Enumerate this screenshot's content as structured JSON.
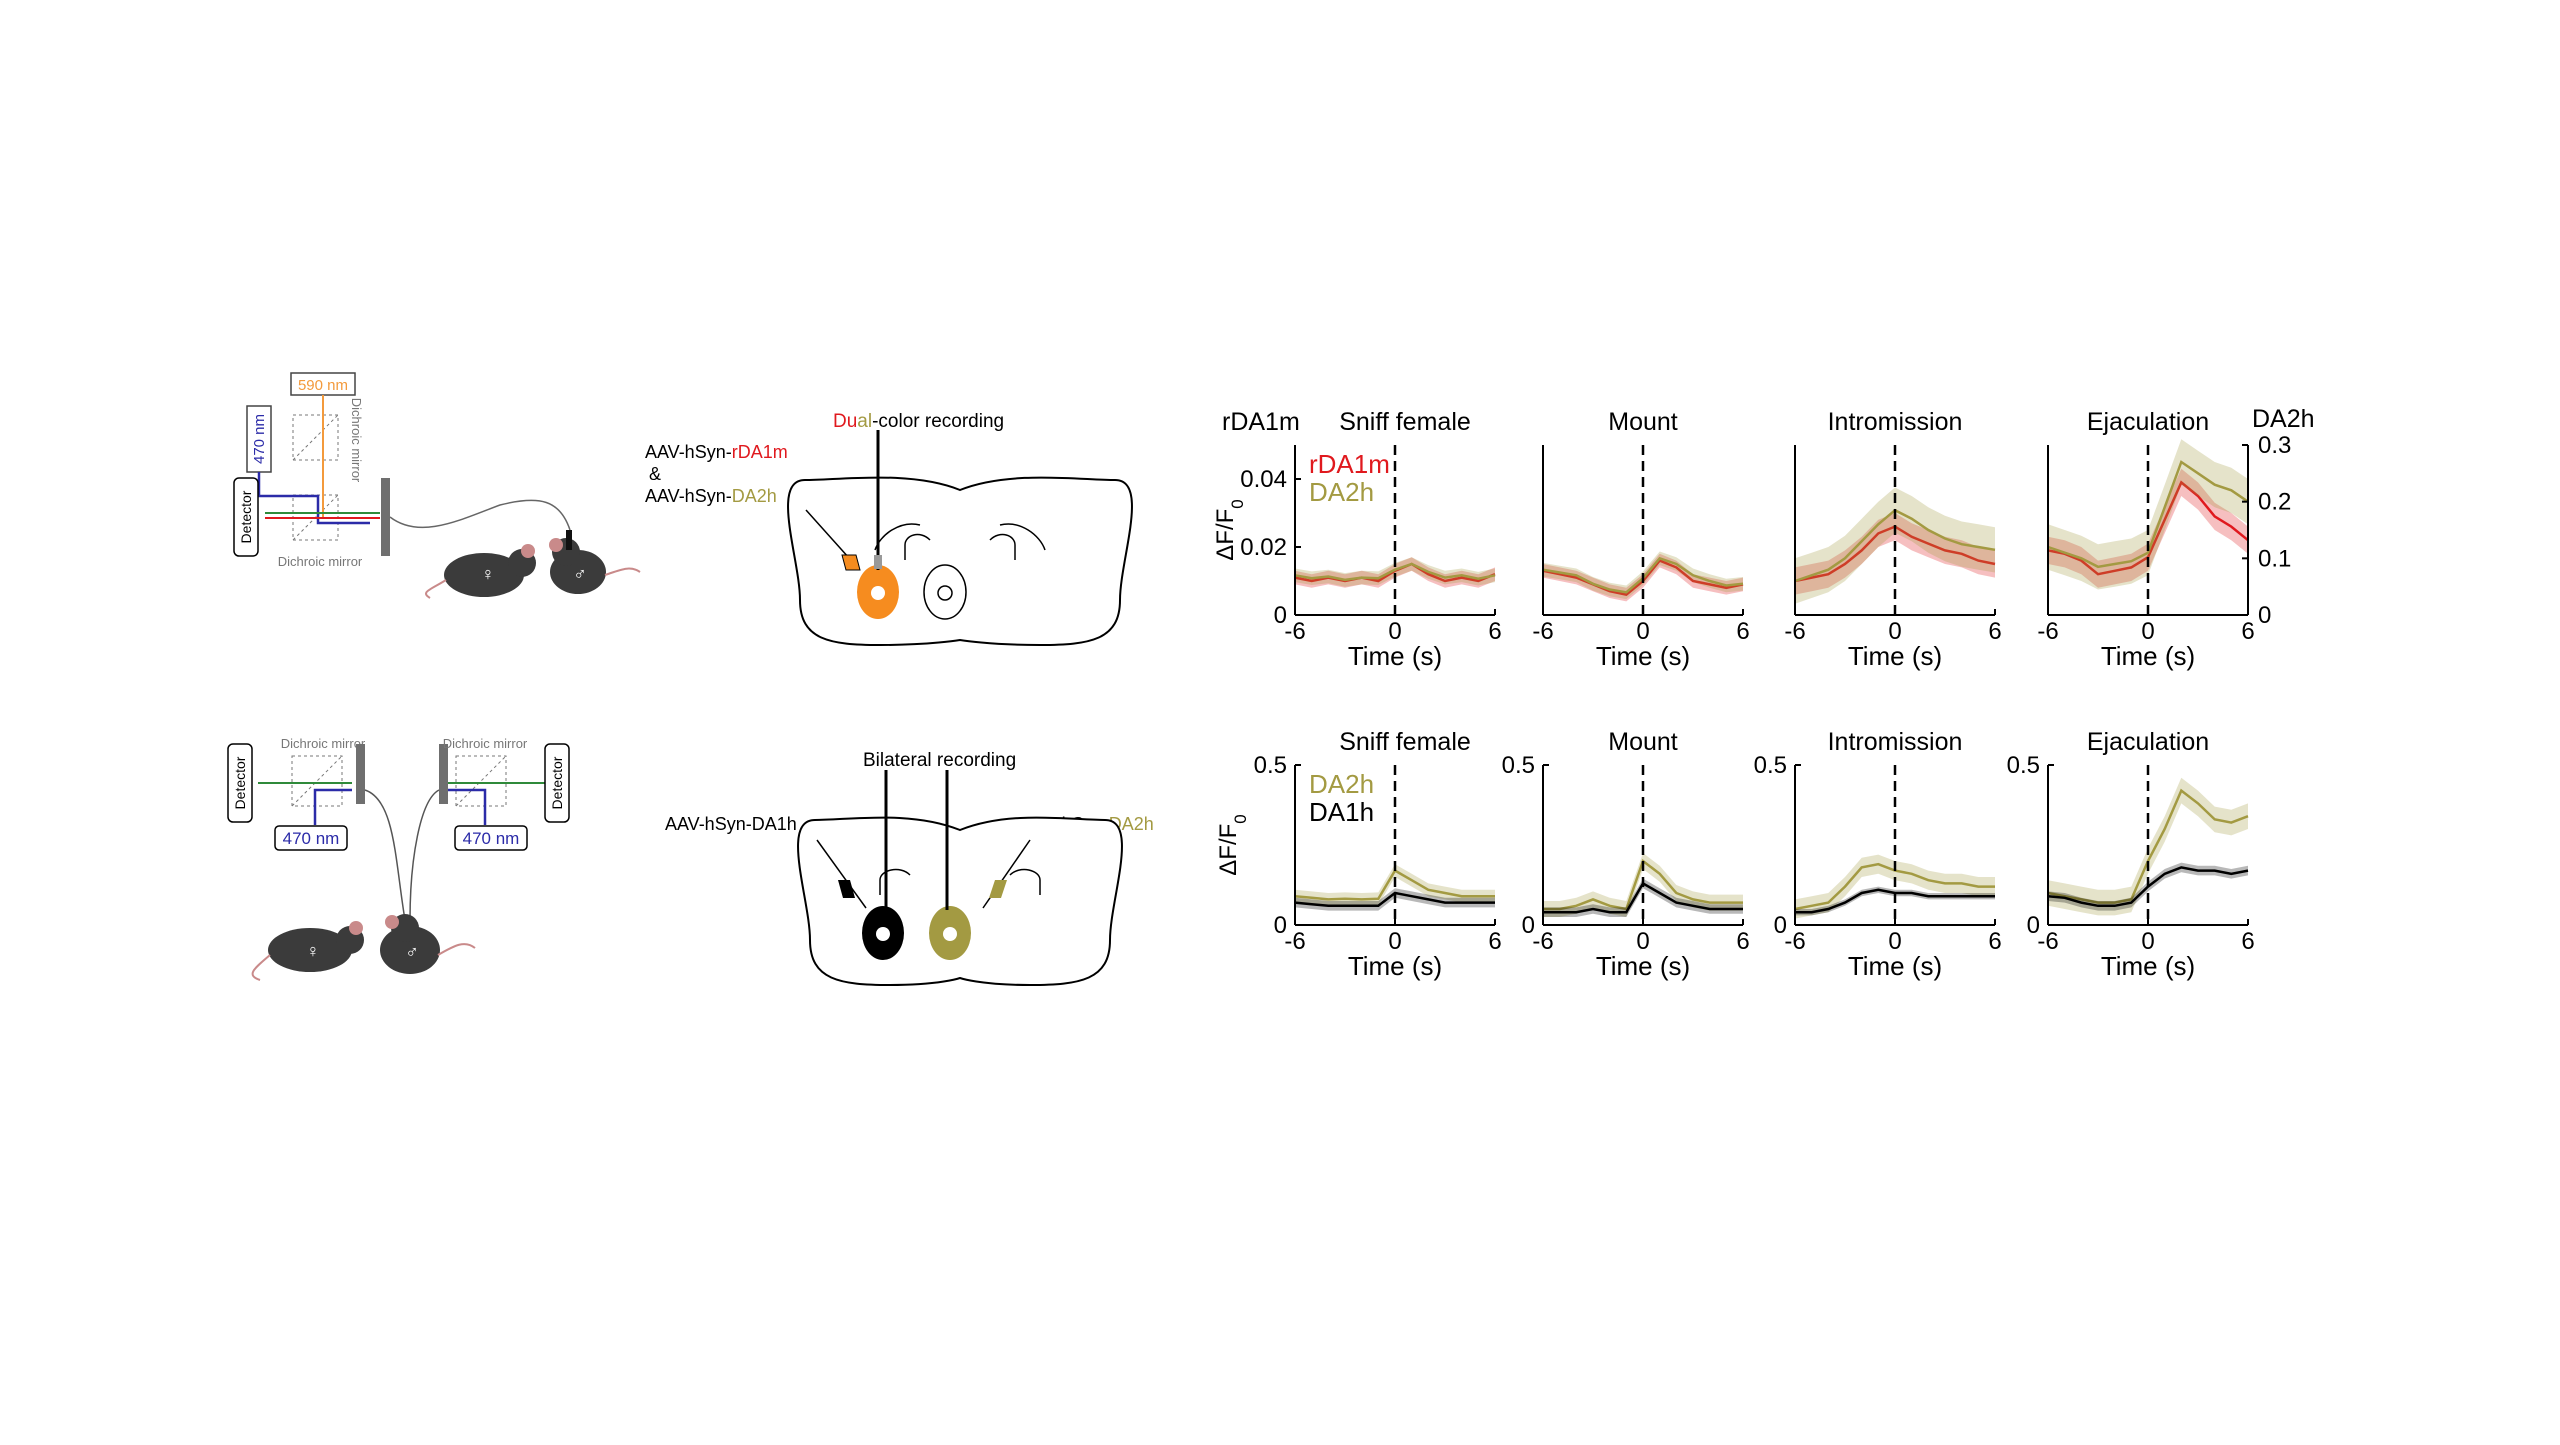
{
  "setup_top": {
    "laser_590": "590 nm",
    "laser_470": "470 nm",
    "dichroic_mirror_vertical": "Dichroic mirror",
    "dichroic_mirror_bottom": "Dichroic mirror",
    "detector": "Detector",
    "female_symbol": "♀",
    "male_symbol": "♂"
  },
  "setup_bottom": {
    "dichroic_left": "Dichroic mirror",
    "dichroic_right": "Dichroic mirror",
    "detector_left": "Detector",
    "detector_right": "Detector",
    "laser_left": "470 nm",
    "laser_right": "470 nm",
    "female_symbol": "♀",
    "male_symbol": "♂"
  },
  "brain_top": {
    "title_part1": "Du",
    "title_part2": "al",
    "title_part3": "-color recording",
    "virus1_prefix": "AAV-hSyn-",
    "virus1_name": "rDA1m",
    "ampersand": "&",
    "virus2_prefix": "AAV-hSyn-",
    "virus2_name": "DA2h"
  },
  "brain_bottom": {
    "title": "Bilateral recording",
    "virus_left": "AAV-hSyn-DA1h",
    "virus_right_prefix": "AAV-hSyn-",
    "virus_right_name": "DA2h"
  },
  "colors": {
    "rDA1m": "#e0191e",
    "DA2h": "#a39a42",
    "DA1h": "#000000",
    "laser_orange": "#f39a3c",
    "laser_blue": "#2b2ba8",
    "laser_green": "#2f8a3a",
    "fiber_orange": "#f68c1f"
  },
  "chart_data": [
    {
      "type": "line",
      "row": "top",
      "title": "Sniff female",
      "ylabel": "ΔF/F0",
      "left_axis_title": "rDA1m",
      "xlabel": "Time (s)",
      "xlim": [
        -6,
        6
      ],
      "xticks": [
        "-6",
        "0",
        "6"
      ],
      "ylim": [
        0,
        0.05
      ],
      "yticks": [
        "0",
        "0.02",
        "0.04"
      ],
      "legend": [
        "rDA1m",
        "DA2h"
      ],
      "x": [
        -6,
        -5,
        -4,
        -3,
        -2,
        -1,
        0,
        1,
        2,
        3,
        4,
        5,
        6
      ],
      "series": [
        {
          "name": "rDA1m",
          "axis": "left",
          "values": [
            0.011,
            0.01,
            0.011,
            0.01,
            0.011,
            0.01,
            0.013,
            0.015,
            0.012,
            0.01,
            0.011,
            0.01,
            0.012
          ],
          "sem": 0.002
        },
        {
          "name": "DA2h",
          "axis": "right",
          "values": [
            0.07,
            0.065,
            0.068,
            0.062,
            0.066,
            0.065,
            0.08,
            0.09,
            0.076,
            0.066,
            0.07,
            0.064,
            0.07
          ],
          "sem": 0.012
        }
      ]
    },
    {
      "type": "line",
      "row": "top",
      "title": "Mount",
      "xlabel": "Time (s)",
      "xlim": [
        -6,
        6
      ],
      "xticks": [
        "-6",
        "0",
        "6"
      ],
      "ylim": [
        0,
        0.05
      ],
      "x": [
        -6,
        -5,
        -4,
        -3,
        -2,
        -1,
        0,
        1,
        2,
        3,
        4,
        5,
        6
      ],
      "series": [
        {
          "name": "rDA1m",
          "axis": "left",
          "values": [
            0.013,
            0.012,
            0.011,
            0.009,
            0.007,
            0.006,
            0.01,
            0.016,
            0.014,
            0.01,
            0.009,
            0.008,
            0.009
          ],
          "sem": 0.002
        },
        {
          "name": "DA2h",
          "axis": "right",
          "values": [
            0.08,
            0.075,
            0.07,
            0.055,
            0.045,
            0.04,
            0.065,
            0.1,
            0.09,
            0.07,
            0.06,
            0.052,
            0.055
          ],
          "sem": 0.012
        }
      ]
    },
    {
      "type": "line",
      "row": "top",
      "title": "Intromission",
      "xlabel": "Time (s)",
      "xlim": [
        -6,
        6
      ],
      "xticks": [
        "-6",
        "0",
        "6"
      ],
      "ylim": [
        0,
        0.05
      ],
      "x": [
        -6,
        -5,
        -4,
        -3,
        -2,
        -1,
        0,
        1,
        2,
        3,
        4,
        5,
        6
      ],
      "series": [
        {
          "name": "rDA1m",
          "axis": "left",
          "values": [
            0.01,
            0.011,
            0.012,
            0.015,
            0.019,
            0.024,
            0.026,
            0.023,
            0.021,
            0.019,
            0.018,
            0.016,
            0.015
          ],
          "sem": 0.004
        },
        {
          "name": "DA2h",
          "axis": "right",
          "values": [
            0.06,
            0.07,
            0.08,
            0.1,
            0.13,
            0.16,
            0.185,
            0.17,
            0.15,
            0.135,
            0.125,
            0.12,
            0.115
          ],
          "sem": 0.04
        }
      ]
    },
    {
      "type": "line",
      "row": "top",
      "title": "Ejaculation",
      "xlabel": "Time (s)",
      "right_axis_title": "DA2h",
      "xlim": [
        -6,
        6
      ],
      "xticks": [
        "-6",
        "0",
        "6"
      ],
      "ylim_right": [
        0,
        0.3
      ],
      "yticks_right": [
        "0",
        "0.1",
        "0.2",
        "0.3"
      ],
      "x": [
        -6,
        -5,
        -4,
        -3,
        -2,
        -1,
        0,
        1,
        2,
        3,
        4,
        5,
        6
      ],
      "series": [
        {
          "name": "rDA1m",
          "axis": "left",
          "values": [
            0.019,
            0.018,
            0.016,
            0.012,
            0.013,
            0.014,
            0.017,
            0.028,
            0.039,
            0.035,
            0.029,
            0.026,
            0.022
          ],
          "sem": 0.004
        },
        {
          "name": "DA2h",
          "axis": "right",
          "values": [
            0.12,
            0.11,
            0.1,
            0.085,
            0.09,
            0.095,
            0.11,
            0.19,
            0.27,
            0.25,
            0.23,
            0.22,
            0.2
          ],
          "sem": 0.04
        }
      ]
    },
    {
      "type": "line",
      "row": "bottom",
      "title": "Sniff female",
      "ylabel": "ΔF/F0",
      "xlabel": "Time (s)",
      "xlim": [
        -6,
        6
      ],
      "xticks": [
        "-6",
        "0",
        "6"
      ],
      "ylim": [
        0,
        0.5
      ],
      "yticks": [
        "0",
        "0.5"
      ],
      "legend": [
        "DA2h",
        "DA1h"
      ],
      "x": [
        -6,
        -5,
        -4,
        -3,
        -2,
        -1,
        0,
        1,
        2,
        3,
        4,
        5,
        6
      ],
      "series": [
        {
          "name": "DA2h",
          "values": [
            0.09,
            0.085,
            0.08,
            0.082,
            0.08,
            0.082,
            0.17,
            0.14,
            0.11,
            0.1,
            0.09,
            0.09,
            0.09
          ],
          "sem": 0.02
        },
        {
          "name": "DA1h",
          "values": [
            0.07,
            0.065,
            0.06,
            0.06,
            0.06,
            0.06,
            0.1,
            0.09,
            0.08,
            0.07,
            0.07,
            0.07,
            0.07
          ],
          "sem": 0.015
        }
      ]
    },
    {
      "type": "line",
      "row": "bottom",
      "title": "Mount",
      "xlabel": "Time (s)",
      "xlim": [
        -6,
        6
      ],
      "xticks": [
        "-6",
        "0",
        "6"
      ],
      "ylim": [
        0,
        0.5
      ],
      "yticks": [
        "0",
        "0.5"
      ],
      "x": [
        -6,
        -5,
        -4,
        -3,
        -2,
        -1,
        0,
        1,
        2,
        3,
        4,
        5,
        6
      ],
      "series": [
        {
          "name": "DA2h",
          "values": [
            0.05,
            0.05,
            0.06,
            0.08,
            0.06,
            0.05,
            0.2,
            0.16,
            0.1,
            0.08,
            0.07,
            0.07,
            0.07
          ],
          "sem": 0.025
        },
        {
          "name": "DA1h",
          "values": [
            0.04,
            0.04,
            0.04,
            0.05,
            0.04,
            0.04,
            0.13,
            0.1,
            0.07,
            0.06,
            0.05,
            0.05,
            0.05
          ],
          "sem": 0.015
        }
      ]
    },
    {
      "type": "line",
      "row": "bottom",
      "title": "Intromission",
      "xlabel": "Time (s)",
      "xlim": [
        -6,
        6
      ],
      "xticks": [
        "-6",
        "0",
        "6"
      ],
      "ylim": [
        0,
        0.5
      ],
      "yticks": [
        "0",
        "0.5"
      ],
      "x": [
        -6,
        -5,
        -4,
        -3,
        -2,
        -1,
        0,
        1,
        2,
        3,
        4,
        5,
        6
      ],
      "series": [
        {
          "name": "DA2h",
          "values": [
            0.05,
            0.06,
            0.07,
            0.12,
            0.18,
            0.19,
            0.17,
            0.16,
            0.14,
            0.13,
            0.13,
            0.12,
            0.12
          ],
          "sem": 0.03
        },
        {
          "name": "DA1h",
          "values": [
            0.04,
            0.04,
            0.05,
            0.07,
            0.1,
            0.11,
            0.1,
            0.1,
            0.09,
            0.09,
            0.09,
            0.09,
            0.09
          ],
          "sem": 0.01
        }
      ]
    },
    {
      "type": "line",
      "row": "bottom",
      "title": "Ejaculation",
      "xlabel": "Time (s)",
      "xlim": [
        -6,
        6
      ],
      "xticks": [
        "-6",
        "0",
        "6"
      ],
      "ylim": [
        0,
        0.5
      ],
      "yticks": [
        "0",
        "0.5"
      ],
      "x": [
        -6,
        -5,
        -4,
        -3,
        -2,
        -1,
        0,
        1,
        2,
        3,
        4,
        5,
        6
      ],
      "series": [
        {
          "name": "DA2h",
          "values": [
            0.1,
            0.09,
            0.08,
            0.07,
            0.07,
            0.08,
            0.2,
            0.3,
            0.42,
            0.38,
            0.33,
            0.32,
            0.34
          ],
          "sem": 0.04
        },
        {
          "name": "DA1h",
          "values": [
            0.09,
            0.085,
            0.07,
            0.06,
            0.06,
            0.07,
            0.12,
            0.16,
            0.18,
            0.17,
            0.17,
            0.16,
            0.17
          ],
          "sem": 0.015
        }
      ]
    }
  ]
}
